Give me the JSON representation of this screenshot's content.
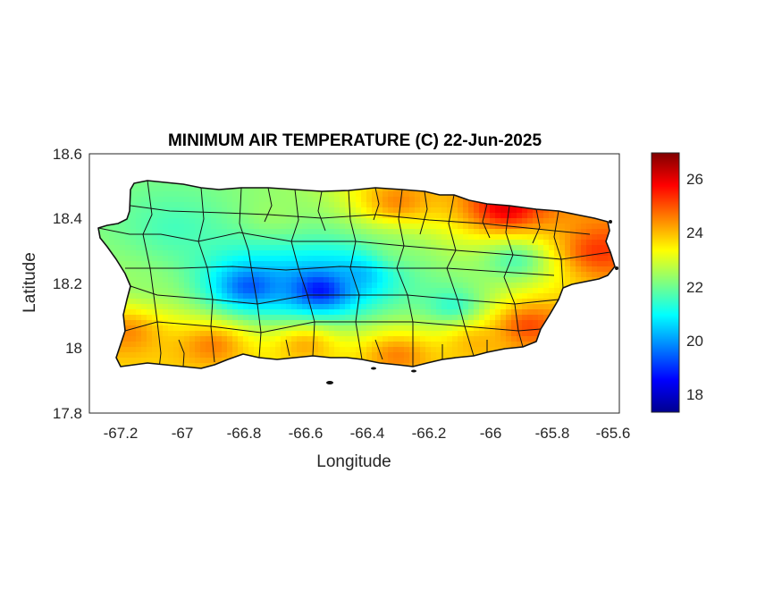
{
  "map": {
    "title": "MINIMUM AIR TEMPERATURE (C) 22-Jun-2025",
    "xlabel": "Longitude",
    "ylabel": "Latitude",
    "x_ticks": [
      "-67.2",
      "-67",
      "-66.8",
      "-66.6",
      "-66.4",
      "-66.2",
      "-66",
      "-65.8",
      "-65.6"
    ],
    "y_ticks": [
      "18.6",
      "18.4",
      "18.2",
      "18",
      "17.8"
    ],
    "colorbar_ticks": [
      "26",
      "24",
      "22",
      "20",
      "18"
    ],
    "colormap": "jet",
    "colorbar_range": [
      17.3,
      27
    ]
  },
  "chart_data": {
    "type": "heatmap",
    "title": "MINIMUM AIR TEMPERATURE (C) 22-Jun-2025",
    "xlabel": "Longitude",
    "ylabel": "Latitude",
    "xlim": [
      -67.3,
      -65.58
    ],
    "ylim": [
      17.8,
      18.6
    ],
    "xticks": [
      -67.2,
      -67,
      -66.8,
      -66.6,
      -66.4,
      -66.2,
      -66,
      -65.8,
      -65.6
    ],
    "yticks": [
      17.8,
      18,
      18.2,
      18.4,
      18.6
    ],
    "colorbar": {
      "min": 17.3,
      "max": 27,
      "ticks": [
        18,
        20,
        22,
        24,
        26
      ],
      "colormap": "jet"
    },
    "grid": false,
    "region": "Puerto Rico",
    "temperature_field": [
      {
        "lon": -66.55,
        "lat": 18.18,
        "value": 17.5
      },
      {
        "lon": -66.78,
        "lat": 18.19,
        "value": 18.6
      },
      {
        "lon": -66.42,
        "lat": 18.23,
        "value": 19.8
      },
      {
        "lon": -66.12,
        "lat": 18.13,
        "value": 20.8
      },
      {
        "lon": -65.92,
        "lat": 18.27,
        "value": 21.2
      },
      {
        "lon": -67.02,
        "lat": 18.37,
        "value": 21.5
      },
      {
        "lon": -67.12,
        "lat": 18.2,
        "value": 22.3
      },
      {
        "lon": -66.7,
        "lat": 18.41,
        "value": 22.5
      },
      {
        "lon": -66.3,
        "lat": 18.3,
        "value": 22.3
      },
      {
        "lon": -65.88,
        "lat": 18.07,
        "value": 25.6
      },
      {
        "lon": -66.6,
        "lat": 18.01,
        "value": 24.6
      },
      {
        "lon": -66.9,
        "lat": 18.01,
        "value": 25.0
      },
      {
        "lon": -67.18,
        "lat": 18.05,
        "value": 24.8
      },
      {
        "lon": -65.95,
        "lat": 18.43,
        "value": 26.6
      },
      {
        "lon": -66.3,
        "lat": 18.45,
        "value": 24.9
      },
      {
        "lon": -65.65,
        "lat": 18.3,
        "value": 25.6
      },
      {
        "lon": -66.3,
        "lat": 17.98,
        "value": 25.0
      },
      {
        "lon": -66.05,
        "lat": 18.02,
        "value": 24.3
      }
    ]
  }
}
